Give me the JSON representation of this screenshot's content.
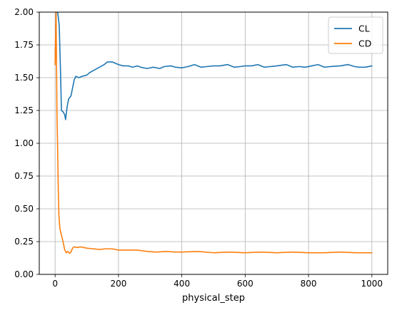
{
  "chart_data": {
    "type": "line",
    "title": "",
    "xlabel": "physical_step",
    "ylabel": "",
    "xlim": [
      -50,
      1050
    ],
    "ylim": [
      0,
      2
    ],
    "xticks": [
      0,
      200,
      400,
      600,
      800,
      1000
    ],
    "yticks": [
      0.0,
      0.25,
      0.5,
      0.75,
      1.0,
      1.25,
      1.5,
      1.75,
      2.0
    ],
    "xtick_labels": [
      "0",
      "200",
      "400",
      "600",
      "800",
      "1000"
    ],
    "ytick_labels": [
      "0.00",
      "0.25",
      "0.50",
      "0.75",
      "1.00",
      "1.25",
      "1.50",
      "1.75",
      "2.00"
    ],
    "grid": true,
    "legend_position": "top-right",
    "series": [
      {
        "name": "CL",
        "color": "#1f77b4",
        "points": [
          [
            0,
            1.6
          ],
          [
            3,
            2.0
          ],
          [
            8,
            2.0
          ],
          [
            13,
            1.9
          ],
          [
            17,
            1.55
          ],
          [
            20,
            1.25
          ],
          [
            25,
            1.24
          ],
          [
            30,
            1.22
          ],
          [
            33,
            1.18
          ],
          [
            38,
            1.28
          ],
          [
            43,
            1.34
          ],
          [
            50,
            1.36
          ],
          [
            55,
            1.42
          ],
          [
            60,
            1.48
          ],
          [
            65,
            1.51
          ],
          [
            75,
            1.5
          ],
          [
            85,
            1.51
          ],
          [
            100,
            1.52
          ],
          [
            110,
            1.54
          ],
          [
            125,
            1.56
          ],
          [
            140,
            1.58
          ],
          [
            155,
            1.6
          ],
          [
            165,
            1.62
          ],
          [
            180,
            1.62
          ],
          [
            200,
            1.6
          ],
          [
            215,
            1.59
          ],
          [
            230,
            1.59
          ],
          [
            245,
            1.58
          ],
          [
            260,
            1.59
          ],
          [
            270,
            1.58
          ],
          [
            290,
            1.57
          ],
          [
            310,
            1.58
          ],
          [
            330,
            1.57
          ],
          [
            345,
            1.585
          ],
          [
            365,
            1.59
          ],
          [
            380,
            1.58
          ],
          [
            400,
            1.575
          ],
          [
            420,
            1.585
          ],
          [
            440,
            1.6
          ],
          [
            460,
            1.58
          ],
          [
            480,
            1.585
          ],
          [
            500,
            1.59
          ],
          [
            520,
            1.59
          ],
          [
            545,
            1.6
          ],
          [
            565,
            1.58
          ],
          [
            585,
            1.585
          ],
          [
            600,
            1.59
          ],
          [
            620,
            1.59
          ],
          [
            640,
            1.6
          ],
          [
            660,
            1.58
          ],
          [
            680,
            1.585
          ],
          [
            700,
            1.59
          ],
          [
            730,
            1.6
          ],
          [
            750,
            1.58
          ],
          [
            770,
            1.585
          ],
          [
            790,
            1.58
          ],
          [
            810,
            1.59
          ],
          [
            830,
            1.6
          ],
          [
            850,
            1.58
          ],
          [
            870,
            1.585
          ],
          [
            900,
            1.59
          ],
          [
            925,
            1.6
          ],
          [
            945,
            1.585
          ],
          [
            960,
            1.58
          ],
          [
            980,
            1.58
          ],
          [
            1000,
            1.59
          ]
        ]
      },
      {
        "name": "CD",
        "color": "#ff7f0e",
        "points": [
          [
            0,
            1.6
          ],
          [
            3,
            2.0
          ],
          [
            6,
            1.2
          ],
          [
            8,
            0.95
          ],
          [
            10,
            0.65
          ],
          [
            12,
            0.45
          ],
          [
            15,
            0.35
          ],
          [
            20,
            0.3
          ],
          [
            25,
            0.25
          ],
          [
            30,
            0.19
          ],
          [
            35,
            0.165
          ],
          [
            40,
            0.175
          ],
          [
            45,
            0.16
          ],
          [
            50,
            0.17
          ],
          [
            55,
            0.2
          ],
          [
            60,
            0.21
          ],
          [
            70,
            0.205
          ],
          [
            80,
            0.21
          ],
          [
            90,
            0.205
          ],
          [
            100,
            0.2
          ],
          [
            120,
            0.195
          ],
          [
            140,
            0.19
          ],
          [
            160,
            0.195
          ],
          [
            180,
            0.195
          ],
          [
            200,
            0.185
          ],
          [
            230,
            0.185
          ],
          [
            260,
            0.185
          ],
          [
            290,
            0.175
          ],
          [
            320,
            0.17
          ],
          [
            350,
            0.175
          ],
          [
            380,
            0.17
          ],
          [
            400,
            0.17
          ],
          [
            450,
            0.175
          ],
          [
            500,
            0.165
          ],
          [
            550,
            0.17
          ],
          [
            600,
            0.165
          ],
          [
            650,
            0.17
          ],
          [
            700,
            0.165
          ],
          [
            750,
            0.17
          ],
          [
            800,
            0.165
          ],
          [
            850,
            0.165
          ],
          [
            900,
            0.17
          ],
          [
            950,
            0.165
          ],
          [
            1000,
            0.165
          ]
        ]
      }
    ]
  }
}
